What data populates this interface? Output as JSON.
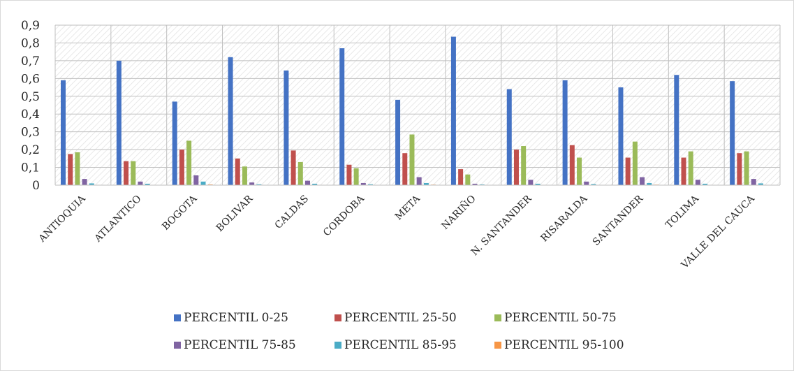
{
  "chart_data": {
    "type": "bar",
    "categories": [
      "ANTIOQUIA",
      "ATLANTICO",
      "BOGOTA",
      "BOLIVAR",
      "CALDAS",
      "CORDOBA",
      "META",
      "NARIÑO",
      "N. SANTANDER",
      "RISARALDA",
      "SANTANDER",
      "TOLIMA",
      "VALLE DEL CAUCA"
    ],
    "y_ticks": [
      "0",
      "0,1",
      "0,2",
      "0,3",
      "0,4",
      "0,5",
      "0,6",
      "0,7",
      "0,8",
      "0,9"
    ],
    "ylim": [
      0,
      0.9
    ],
    "grid": true,
    "legend_position": "bottom",
    "series": [
      {
        "name": "PERCENTIL 0-25",
        "color": "#4472C4",
        "values": [
          0.59,
          0.7,
          0.47,
          0.72,
          0.645,
          0.77,
          0.48,
          0.835,
          0.54,
          0.59,
          0.55,
          0.62,
          0.585
        ]
      },
      {
        "name": "PERCENTIL 25-50",
        "color": "#C0504D",
        "values": [
          0.175,
          0.135,
          0.2,
          0.15,
          0.195,
          0.115,
          0.18,
          0.09,
          0.2,
          0.225,
          0.155,
          0.155,
          0.18
        ]
      },
      {
        "name": "PERCENTIL 50-75",
        "color": "#9BBB59",
        "values": [
          0.185,
          0.135,
          0.25,
          0.105,
          0.13,
          0.095,
          0.285,
          0.06,
          0.22,
          0.155,
          0.245,
          0.19,
          0.19
        ]
      },
      {
        "name": "PERCENTIL 75-85",
        "color": "#8064A2",
        "values": [
          0.035,
          0.02,
          0.055,
          0.015,
          0.025,
          0.012,
          0.045,
          0.008,
          0.03,
          0.02,
          0.045,
          0.03,
          0.035
        ]
      },
      {
        "name": "PERCENTIL 85-95",
        "color": "#4BACC6",
        "values": [
          0.01,
          0.008,
          0.02,
          0.005,
          0.008,
          0.005,
          0.012,
          0.004,
          0.008,
          0.006,
          0.012,
          0.008,
          0.01
        ]
      },
      {
        "name": "PERCENTIL 95-100",
        "color": "#F79646",
        "values": [
          0.002,
          0.002,
          0.004,
          0.001,
          0.002,
          0.001,
          0.003,
          0.001,
          0.002,
          0.001,
          0.003,
          0.002,
          0.002
        ]
      }
    ]
  }
}
